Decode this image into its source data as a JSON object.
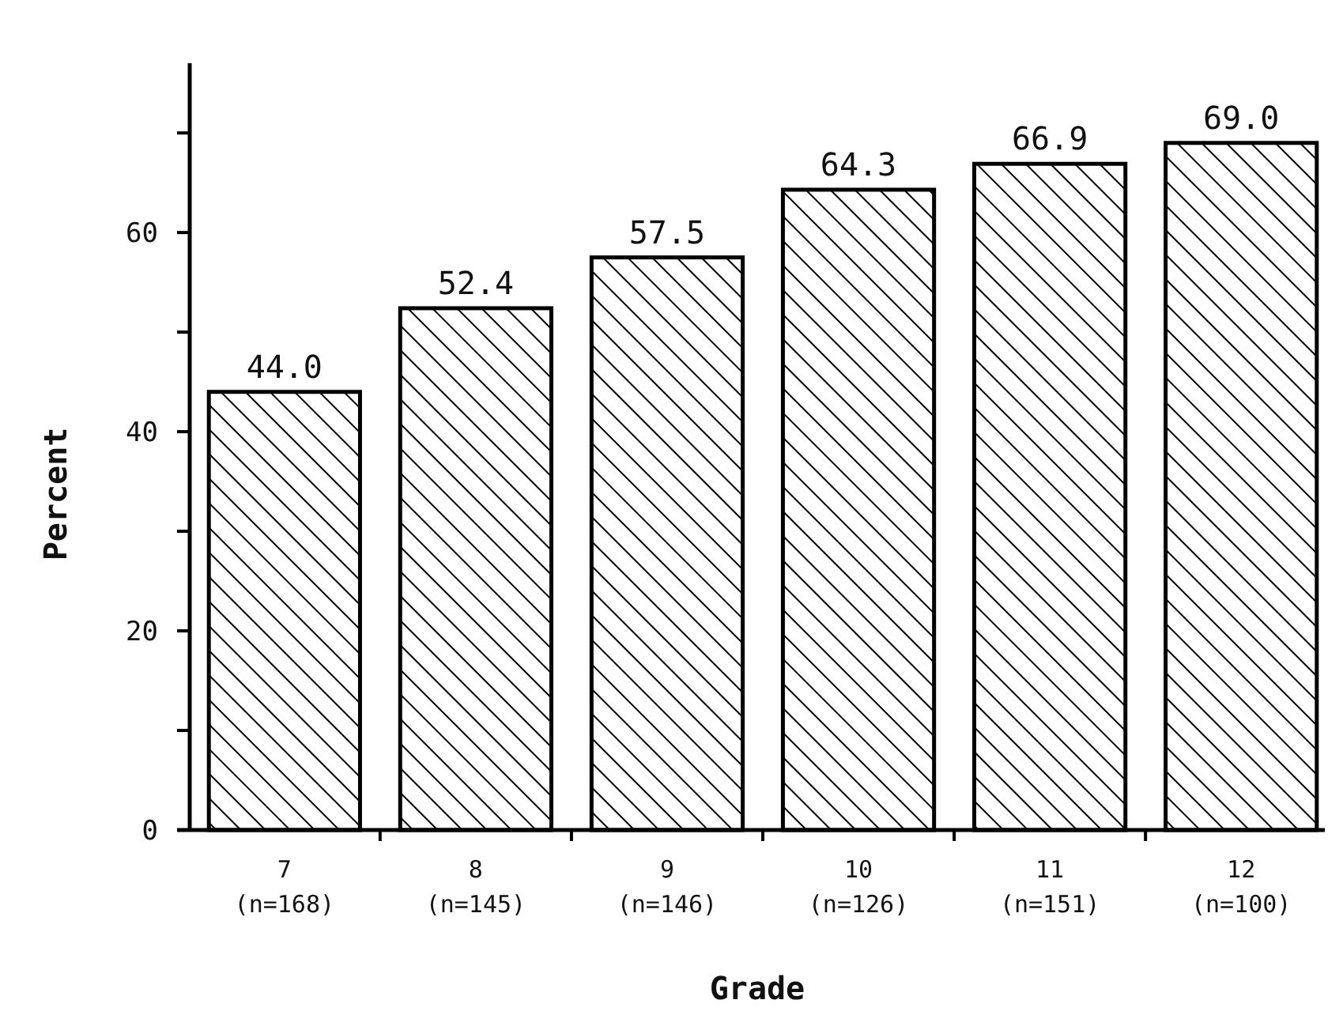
{
  "chart_data": {
    "type": "bar",
    "xlabel": "Grade",
    "ylabel": "Percent",
    "categories": [
      "7\n(n=168)",
      "8\n(n=145)",
      "9\n(n=146)",
      "10\n(n=126)",
      "11\n(n=151)",
      "12\n(n=100)"
    ],
    "values": [
      44.0,
      52.4,
      57.5,
      64.3,
      66.9,
      69.0
    ],
    "color": "#000000",
    "value_labels": [
      "44.0",
      "52.4",
      "57.5",
      "64.3",
      "66.9",
      "69.0"
    ],
    "ylim": [
      0,
      77
    ],
    "yticks": [
      0,
      {
        "value": 10,
        "label": null
      },
      20,
      {
        "value": 30,
        "label": null
      },
      40,
      {
        "value": 50,
        "label": null
      },
      60,
      {
        "value": 70,
        "label": null
      }
    ],
    "grid": false
  }
}
